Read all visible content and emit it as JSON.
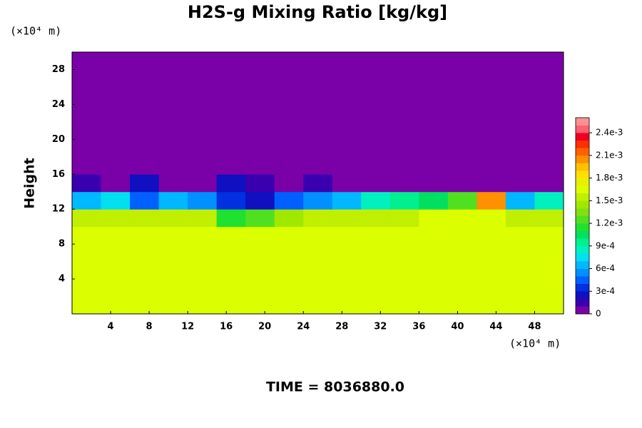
{
  "chart_data": {
    "type": "heatmap",
    "title": "H2S-g Mixing Ratio [kg/kg]",
    "y_label": "Height",
    "y_unit_label": "(×10⁴ m)",
    "x_unit_label": "(×10⁴ m)",
    "time_label": "TIME = 8036880.0",
    "xlim": [
      0,
      51
    ],
    "ylim": [
      0,
      30
    ],
    "xticks": [
      4,
      8,
      12,
      16,
      20,
      24,
      28,
      32,
      36,
      40,
      44,
      48
    ],
    "yticks": [
      4,
      8,
      12,
      16,
      20,
      24,
      28
    ],
    "x_edges": [
      0,
      3,
      6,
      9,
      12,
      15,
      18,
      21,
      24,
      27,
      30,
      33,
      36,
      39,
      42,
      45,
      48,
      51
    ],
    "y_edges": [
      0,
      2,
      4,
      6,
      8,
      10,
      12,
      14,
      16,
      18,
      20,
      22,
      24,
      26,
      28,
      30
    ],
    "values": [
      [
        0.00165,
        0.00165,
        0.00165,
        0.00165,
        0.00165,
        0.00165,
        0.00165,
        0.00165,
        0.00165,
        0.00165,
        0.00165,
        0.00165,
        0.00165,
        0.00165,
        0.00165,
        0.00165,
        0.00165
      ],
      [
        0.00165,
        0.00165,
        0.00165,
        0.00165,
        0.00165,
        0.00165,
        0.00165,
        0.00165,
        0.00165,
        0.00165,
        0.00165,
        0.00165,
        0.00165,
        0.00165,
        0.00165,
        0.00165,
        0.00165
      ],
      [
        0.00165,
        0.00165,
        0.00165,
        0.00165,
        0.00165,
        0.00165,
        0.00165,
        0.00165,
        0.00165,
        0.00165,
        0.00165,
        0.00165,
        0.00165,
        0.00165,
        0.00165,
        0.00165,
        0.00165
      ],
      [
        0.00165,
        0.00165,
        0.00165,
        0.00165,
        0.00165,
        0.00165,
        0.00165,
        0.00165,
        0.00165,
        0.00165,
        0.00165,
        0.00165,
        0.00165,
        0.00165,
        0.00165,
        0.00165,
        0.00165
      ],
      [
        0.0016,
        0.0016,
        0.0016,
        0.0016,
        0.0016,
        0.0016,
        0.0016,
        0.0016,
        0.0016,
        0.0016,
        0.0016,
        0.0016,
        0.0016,
        0.0016,
        0.0016,
        0.0016,
        0.0016
      ],
      [
        0.0015,
        0.0015,
        0.0015,
        0.0015,
        0.0015,
        0.0011,
        0.0012,
        0.0014,
        0.0015,
        0.0015,
        0.0015,
        0.0015,
        0.0016,
        0.0016,
        0.0016,
        0.0015,
        0.0015
      ],
      [
        0.0006,
        0.0007,
        0.0004,
        0.0006,
        0.0005,
        0.0003,
        0.0002,
        0.0004,
        0.0005,
        0.0006,
        0.0008,
        0.0009,
        0.001,
        0.0012,
        0.002,
        0.0006,
        0.0008
      ],
      [
        0.0001,
        0,
        0.0002,
        0,
        0,
        0.0002,
        0.0001,
        0,
        0.0001,
        0,
        0,
        0,
        0,
        0,
        0,
        0,
        0
      ],
      [
        0,
        0,
        0,
        0,
        0,
        0,
        0,
        0,
        0,
        0,
        0,
        0,
        0,
        0,
        0,
        0,
        0
      ],
      [
        0,
        0,
        0,
        0,
        0,
        0,
        0,
        0,
        0,
        0,
        0,
        0,
        0,
        0,
        0,
        0,
        0
      ],
      [
        0,
        0,
        0,
        0,
        0,
        0,
        0,
        0,
        0,
        0,
        0,
        0,
        0,
        0,
        0,
        0,
        0
      ],
      [
        0,
        0,
        0,
        0,
        0,
        0,
        0,
        0,
        0,
        0,
        0,
        0,
        0,
        0,
        0,
        0,
        0
      ],
      [
        0,
        0,
        0,
        0,
        0,
        0,
        0,
        0,
        0,
        0,
        0,
        0,
        0,
        0,
        0,
        0,
        0
      ],
      [
        0,
        0,
        0,
        0,
        0,
        0,
        0,
        0,
        0,
        0,
        0,
        0,
        0,
        0,
        0,
        0,
        0
      ],
      [
        0,
        0,
        0,
        0,
        0,
        0,
        0,
        0,
        0,
        0,
        0,
        0,
        0,
        0,
        0,
        0,
        0
      ]
    ],
    "clim": [
      0,
      0.0026
    ],
    "colormap": [
      "#7a00a8",
      "#3a00b0",
      "#1010c0",
      "#0030e0",
      "#0060ff",
      "#0090ff",
      "#00b8ff",
      "#00e0f0",
      "#00f0c0",
      "#00f090",
      "#00e060",
      "#20e030",
      "#50e020",
      "#80e010",
      "#a0e800",
      "#c0f000",
      "#dcff00",
      "#e8f000",
      "#ffe000",
      "#ffc000",
      "#ff9000",
      "#ff6000",
      "#ff3000",
      "#f00020",
      "#ff6070",
      "#ff9090"
    ],
    "cticks": [
      0,
      {
        "value": 0.0003,
        "label": "3e-4"
      },
      {
        "value": 0.0006,
        "label": "6e-4"
      },
      {
        "value": 0.0009,
        "label": "9e-4"
      },
      {
        "value": 0.0012,
        "label": "1.2e-3"
      },
      {
        "value": 0.0015,
        "label": "1.5e-3"
      },
      {
        "value": 0.0018,
        "label": "1.8e-3"
      },
      {
        "value": 0.0021,
        "label": "2.1e-3"
      },
      {
        "value": 0.0024,
        "label": "2.4e-3"
      }
    ]
  }
}
